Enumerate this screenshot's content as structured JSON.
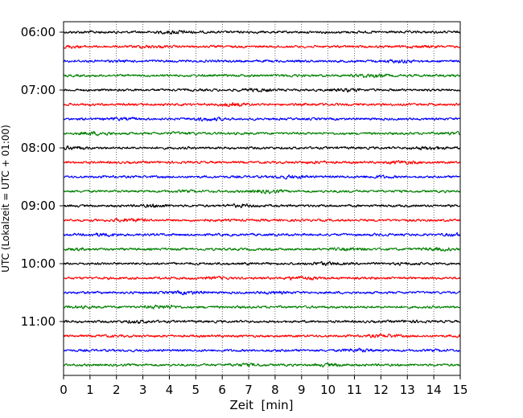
{
  "chart_data": {
    "type": "line",
    "subtype": "helicorder-seismogram",
    "title": "",
    "xlabel": "Zeit  [min]",
    "ylabel": "UTC (Lokalzeit = UTC + 01:00)",
    "xlim": [
      0,
      15
    ],
    "x_ticks": [
      0,
      1,
      2,
      3,
      4,
      5,
      6,
      7,
      8,
      9,
      10,
      11,
      12,
      13,
      14,
      15
    ],
    "x_tick_labels": [
      "0",
      "1",
      "2",
      "3",
      "4",
      "5",
      "6",
      "7",
      "8",
      "9",
      "10",
      "11",
      "12",
      "13",
      "14",
      "15"
    ],
    "y_tick_labels": [
      "06:00",
      "07:00",
      "08:00",
      "09:00",
      "10:00",
      "11:00"
    ],
    "trace_interval_min": 15,
    "trace_start_times": [
      "06:00",
      "06:15",
      "06:30",
      "06:45",
      "07:00",
      "07:15",
      "07:30",
      "07:45",
      "08:00",
      "08:15",
      "08:30",
      "08:45",
      "09:00",
      "09:15",
      "09:30",
      "09:45",
      "10:00",
      "10:15",
      "10:30",
      "10:45",
      "11:00",
      "11:15",
      "11:30",
      "11:45"
    ],
    "trace_color_cycle": [
      "#000000",
      "#ff0000",
      "#0000ff",
      "#008000"
    ],
    "grid": {
      "x": true,
      "style": "dotted"
    },
    "legend": "none"
  }
}
